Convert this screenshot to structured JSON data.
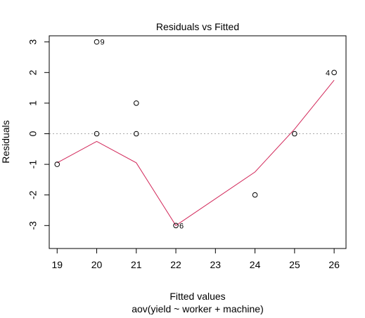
{
  "chart_data": {
    "type": "scatter",
    "title": "Residuals vs Fitted",
    "xlabel": "Fitted values",
    "subtitle": "aov(yield ~ worker + machine)",
    "ylabel": "Residuals",
    "xlim": [
      18.8,
      26.3
    ],
    "ylim": [
      -3.75,
      3.2
    ],
    "x_ticks": [
      19,
      20,
      21,
      22,
      23,
      24,
      25,
      26
    ],
    "y_ticks": [
      -3,
      -2,
      -1,
      0,
      1,
      2,
      3
    ],
    "points": [
      {
        "x": 19,
        "y": -1,
        "label": ""
      },
      {
        "x": 20,
        "y": 3,
        "label": "9"
      },
      {
        "x": 20,
        "y": 0,
        "label": ""
      },
      {
        "x": 21,
        "y": 1,
        "label": ""
      },
      {
        "x": 21,
        "y": 0,
        "label": ""
      },
      {
        "x": 22,
        "y": -3,
        "label": "6"
      },
      {
        "x": 24,
        "y": -2,
        "label": ""
      },
      {
        "x": 25,
        "y": 0,
        "label": ""
      },
      {
        "x": 26,
        "y": 2,
        "label": "4"
      }
    ],
    "smooth_line": {
      "x": [
        19,
        20,
        21,
        22,
        24,
        25,
        26
      ],
      "y": [
        -0.95,
        -0.25,
        -0.95,
        -3.0,
        -1.25,
        0.15,
        1.75
      ],
      "color": "#d2285a"
    },
    "reference_line": {
      "y": 0,
      "style": "dotted",
      "color": "#aaaaaa"
    },
    "grid": false
  }
}
